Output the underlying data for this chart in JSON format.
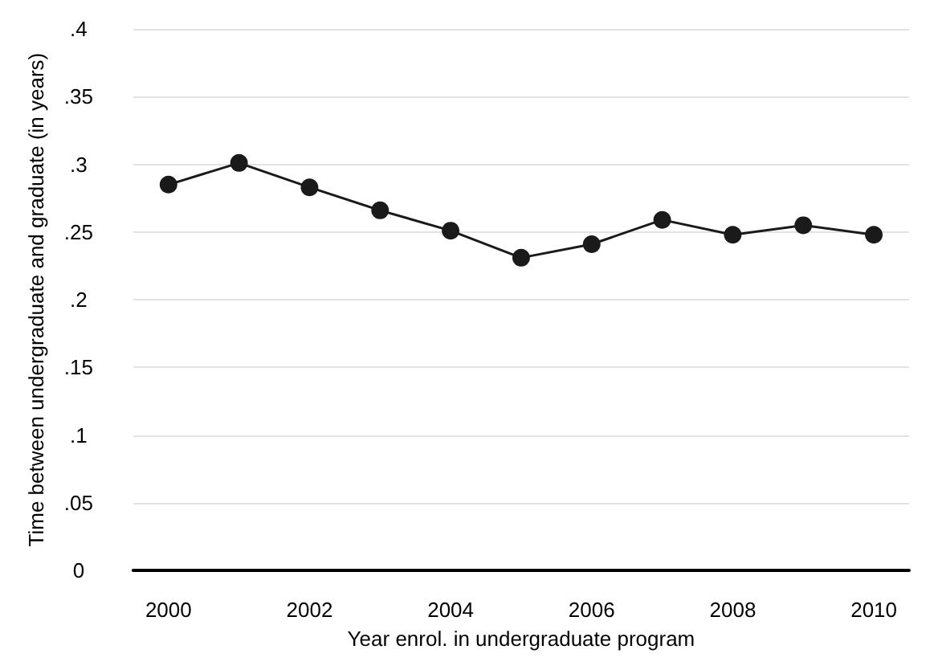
{
  "chart_data": {
    "type": "line",
    "xlabel": "Year enrol. in undergraduate program",
    "ylabel": "Time between undergraduate and graduate (in years)",
    "x": [
      2000,
      2001,
      2002,
      2003,
      2004,
      2005,
      2006,
      2007,
      2008,
      2009,
      2010
    ],
    "series": [
      {
        "color": "#1a1a1a",
        "values": [
          0.285,
          0.301,
          0.283,
          0.266,
          0.251,
          0.231,
          0.241,
          0.259,
          0.248,
          0.255,
          0.248
        ]
      }
    ],
    "xlim": [
      1999.5,
      2010.5
    ],
    "xticks": [
      2000,
      2002,
      2004,
      2006,
      2008,
      2010
    ],
    "ylim": [
      0,
      0.4
    ],
    "yticks": [
      0,
      {
        "value": 0.05,
        "label": ".05"
      },
      {
        "value": 0.1,
        "label": ".1"
      },
      {
        "value": 0.15,
        "label": ".15"
      },
      {
        "value": 0.2,
        "label": ".2"
      },
      {
        "value": 0.25,
        "label": ".25"
      },
      {
        "value": 0.3,
        "label": ".3"
      },
      {
        "value": 0.35,
        "label": ".35"
      },
      {
        "value": 0.4,
        "label": ".4"
      }
    ],
    "grid": "y",
    "marker": "circle",
    "line_style": "solid"
  }
}
